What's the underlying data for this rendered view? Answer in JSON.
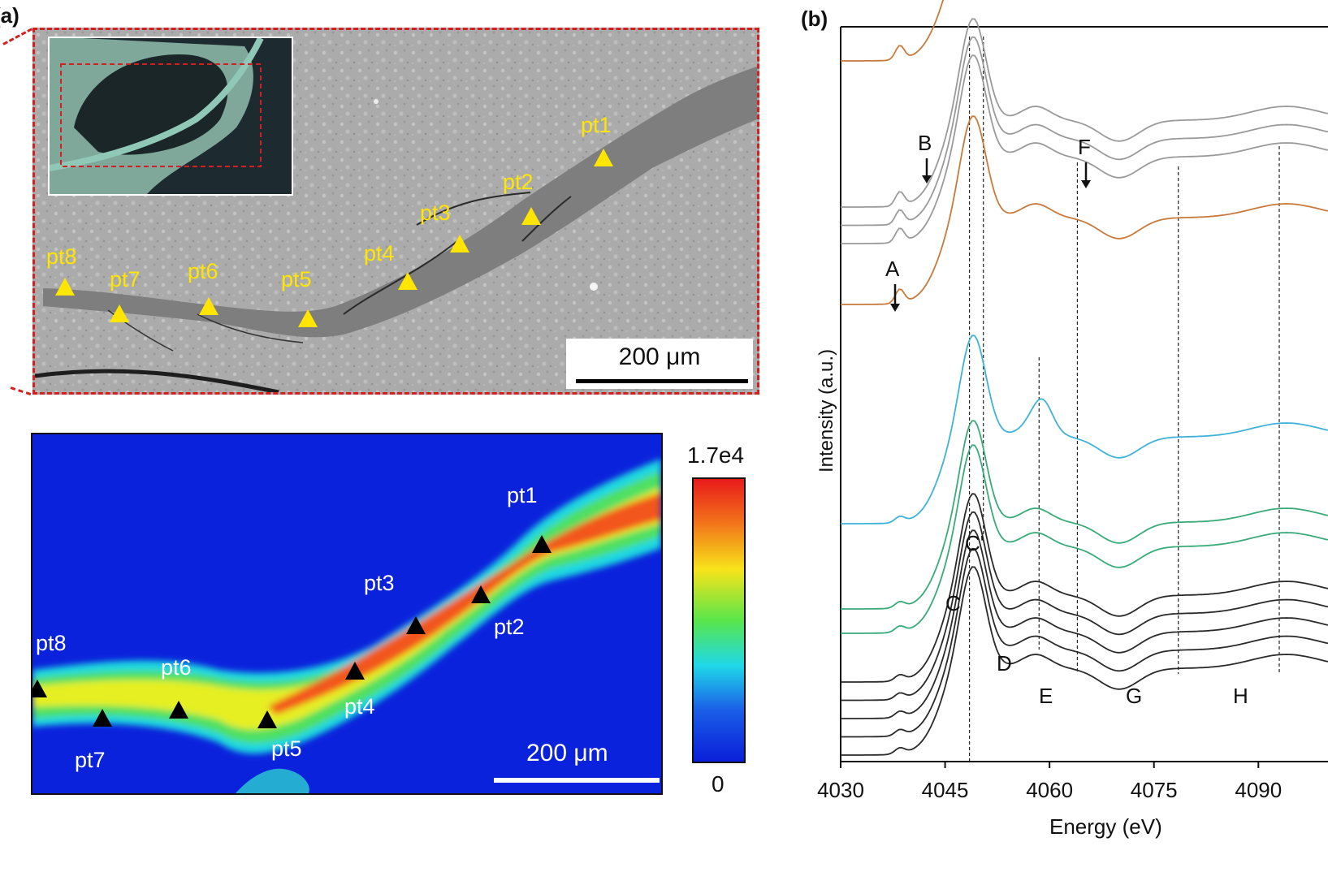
{
  "panel_a": {
    "label": "(a)",
    "micrograph": {
      "points": [
        "pt1",
        "pt2",
        "pt3",
        "pt4",
        "pt5",
        "pt6",
        "pt7",
        "pt8"
      ],
      "scale_bar": "200 μm",
      "colors": {
        "frame": "#d21f1f",
        "marker": "#ffe500",
        "vein": "#808080",
        "matrix": "#a9a9a9"
      }
    },
    "map": {
      "points": [
        "pt1",
        "pt2",
        "pt3",
        "pt4",
        "pt5",
        "pt6",
        "pt7",
        "pt8"
      ],
      "scale_bar": "200 μm",
      "colorbar_max": "1.7e4",
      "colorbar_min": "0",
      "colors": {
        "background": "#0a1fd8",
        "marker": "#000000"
      }
    }
  },
  "panel_b": {
    "label": "(b)",
    "chart_data": {
      "type": "line",
      "title": "",
      "xlabel": "Energy (eV)",
      "ylabel": "Intensity (a.u.)",
      "xlim": [
        4030,
        4100
      ],
      "x_ticks": [
        "4030",
        "4045",
        "4060",
        "4075",
        "4090"
      ],
      "feature_labels": {
        "A": "A",
        "B": "B",
        "C": "C",
        "C_prime": "C'",
        "D": "D",
        "E": "E",
        "F": "F",
        "G": "G",
        "H": "H"
      },
      "series_colors": {
        "orange": "#c77a3c",
        "gray": "#9a9a9a",
        "blue": "#3fb2d8",
        "green": "#3aaa7a",
        "black": "#2a2a2a"
      },
      "series": [
        {
          "name": "orange-1",
          "color": "orange",
          "offset": 5.7
        },
        {
          "name": "gray-1",
          "color": "gray",
          "offset": 4.5
        },
        {
          "name": "gray-2",
          "color": "gray",
          "offset": 4.35
        },
        {
          "name": "gray-3",
          "color": "gray",
          "offset": 4.2
        },
        {
          "name": "orange-2",
          "color": "orange",
          "offset": 3.7
        },
        {
          "name": "blue-1",
          "color": "blue",
          "offset": 1.9
        },
        {
          "name": "green-1",
          "color": "green",
          "offset": 1.2
        },
        {
          "name": "green-2",
          "color": "green",
          "offset": 1.0
        },
        {
          "name": "black-1",
          "color": "black",
          "offset": 0.6
        },
        {
          "name": "black-2",
          "color": "black",
          "offset": 0.45
        },
        {
          "name": "black-3",
          "color": "black",
          "offset": 0.3
        },
        {
          "name": "black-4",
          "color": "black",
          "offset": 0.15
        },
        {
          "name": "black-5",
          "color": "black",
          "offset": 0.0
        }
      ]
    }
  }
}
